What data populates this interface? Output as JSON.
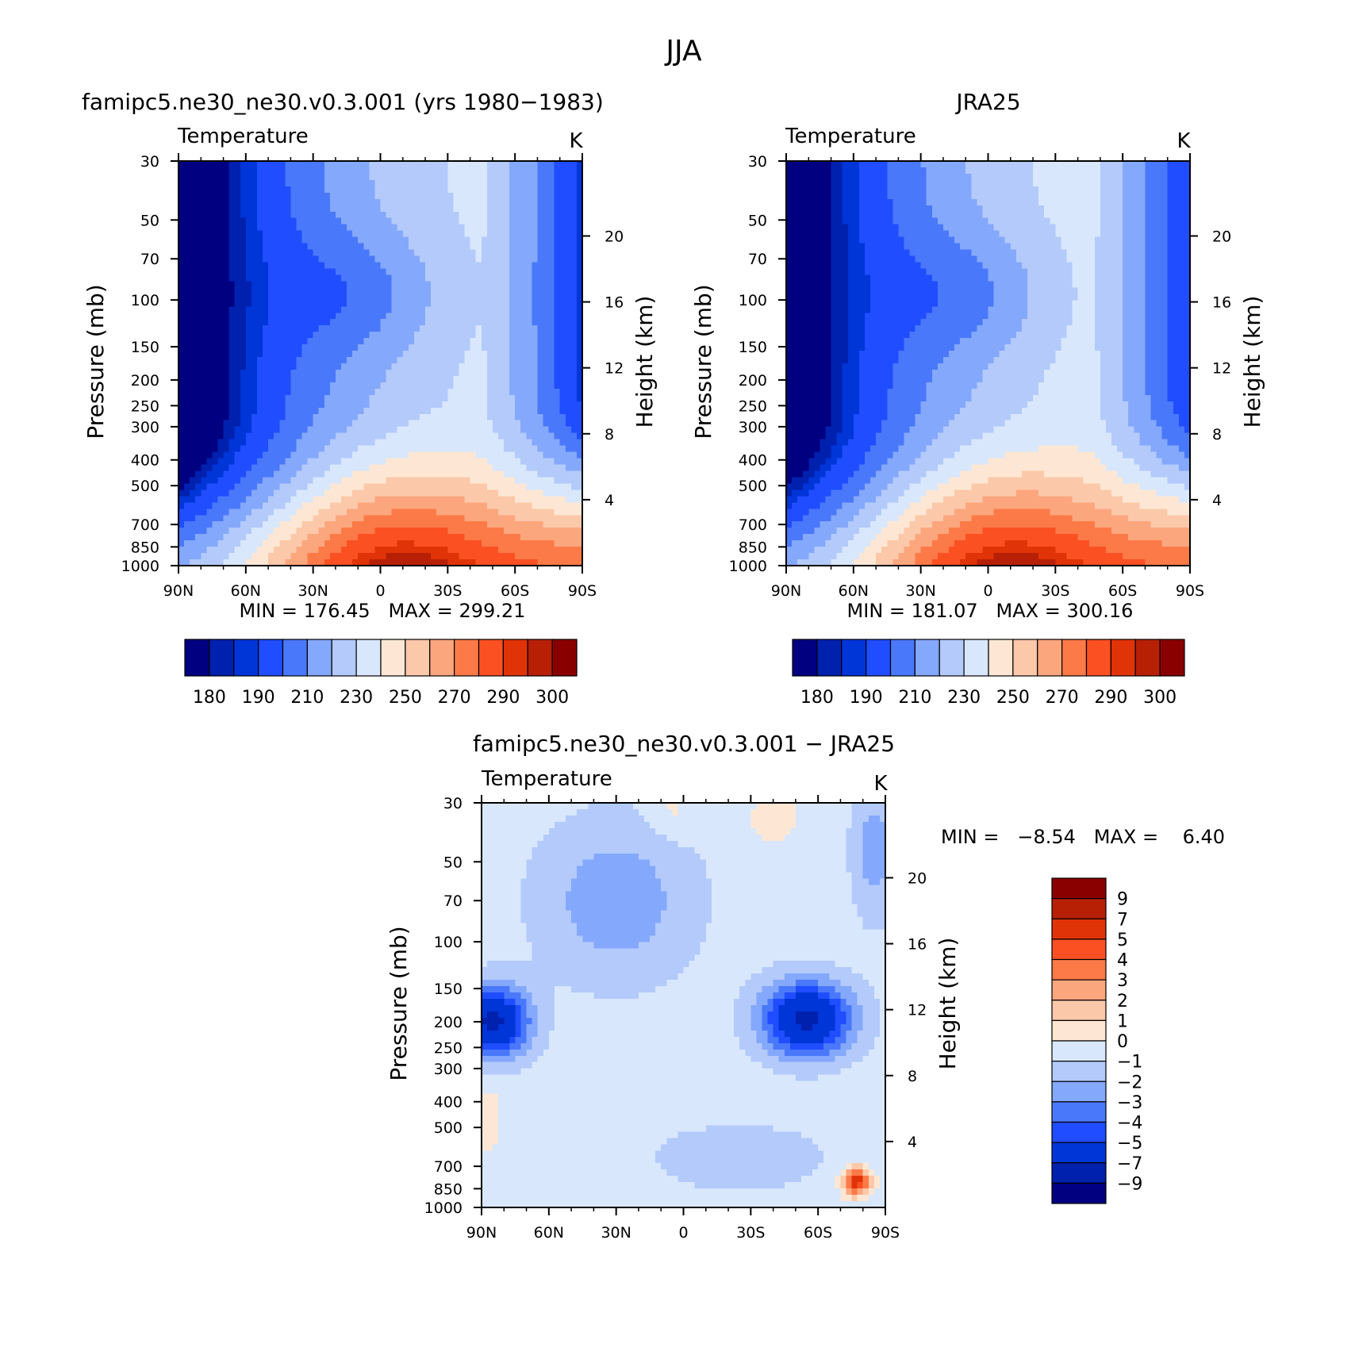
{
  "figure": {
    "title": "JJA"
  },
  "colors": {
    "abs_palette": [
      "#000080",
      "#0020ae",
      "#0035d7",
      "#1f4dff",
      "#4a78fb",
      "#84a8fb",
      "#b3cafb",
      "#d8e7fb",
      "#fde7d4",
      "#fcc8aa",
      "#fca67e",
      "#fc7a47",
      "#fb5022",
      "#e13308",
      "#b82006",
      "#8a0000"
    ],
    "diff_palette": [
      "#000080",
      "#0020ae",
      "#0035d7",
      "#1f4dff",
      "#4a78fb",
      "#84a8fb",
      "#b3cafb",
      "#d8e7fb",
      "#fde7d4",
      "#fcc8aa",
      "#fca67e",
      "#fc7a47",
      "#fb5022",
      "#e13308",
      "#b82006",
      "#8a0000"
    ]
  },
  "chart_data": [
    {
      "type": "heatmap",
      "panel_title": "famipc5.ne30_ne30.v0.3.001 (yrs 1980−1983)",
      "left_label": "Temperature",
      "right_label": "K",
      "ylabel": "Pressure (mb)",
      "y2label": "Height (km)",
      "stats": "MIN = 176.45   MAX = 299.21",
      "min": 176.45,
      "max": 299.21,
      "x_ticks": [
        "90N",
        "60N",
        "30N",
        "0",
        "30S",
        "60S",
        "90S"
      ],
      "x_range": [
        90,
        -90
      ],
      "y_ticks": [
        "30",
        "50",
        "70",
        "100",
        "150",
        "200",
        "250",
        "300",
        "400",
        "500",
        "700",
        "850",
        "1000"
      ],
      "y_range_mb": [
        30,
        1000
      ],
      "y2_ticks": [
        "20",
        "16",
        "12",
        "8",
        "4"
      ],
      "levels": [
        180,
        185,
        190,
        200,
        210,
        220,
        230,
        240,
        250,
        260,
        270,
        280,
        290,
        295,
        300
      ],
      "colorbar_labels": [
        "180",
        "190",
        "210",
        "230",
        "250",
        "270",
        "290",
        "300"
      ],
      "variant": 0
    },
    {
      "type": "heatmap",
      "panel_title": "JRA25",
      "left_label": "Temperature",
      "right_label": "K",
      "ylabel": "Pressure (mb)",
      "y2label": "Height (km)",
      "stats": "MIN = 181.07   MAX = 300.16",
      "min": 181.07,
      "max": 300.16,
      "x_ticks": [
        "90N",
        "60N",
        "30N",
        "0",
        "30S",
        "60S",
        "90S"
      ],
      "x_range": [
        90,
        -90
      ],
      "y_ticks": [
        "30",
        "50",
        "70",
        "100",
        "150",
        "200",
        "250",
        "300",
        "400",
        "500",
        "700",
        "850",
        "1000"
      ],
      "y_range_mb": [
        30,
        1000
      ],
      "y2_ticks": [
        "20",
        "16",
        "12",
        "8",
        "4"
      ],
      "levels": [
        180,
        185,
        190,
        200,
        210,
        220,
        230,
        240,
        250,
        260,
        270,
        280,
        290,
        295,
        300
      ],
      "colorbar_labels": [
        "180",
        "190",
        "210",
        "230",
        "250",
        "270",
        "290",
        "300"
      ],
      "variant": 1
    },
    {
      "type": "heatmap",
      "panel_title": "famipc5.ne30_ne30.v0.3.001 − JRA25",
      "left_label": "Temperature",
      "right_label": "K",
      "ylabel": "Pressure (mb)",
      "y2label": "Height (km)",
      "stats": "MIN =   −8.54   MAX =    6.40",
      "min": -8.54,
      "max": 6.4,
      "x_ticks": [
        "90N",
        "60N",
        "30N",
        "0",
        "30S",
        "60S",
        "90S"
      ],
      "x_range": [
        90,
        -90
      ],
      "y_ticks": [
        "30",
        "50",
        "70",
        "100",
        "150",
        "200",
        "250",
        "300",
        "400",
        "500",
        "700",
        "850",
        "1000"
      ],
      "y_range_mb": [
        30,
        1000
      ],
      "y2_ticks": [
        "20",
        "16",
        "12",
        "8",
        "4"
      ],
      "levels": [
        -9,
        -7,
        -5,
        -4,
        -3,
        -2,
        -1,
        0,
        1,
        2,
        3,
        4,
        5,
        7,
        9
      ],
      "colorbar_labels": [
        "9",
        "7",
        "5",
        "4",
        "3",
        "2",
        "1",
        "0",
        "−1",
        "−2",
        "−3",
        "−4",
        "−5",
        "−7",
        "−9"
      ]
    }
  ]
}
